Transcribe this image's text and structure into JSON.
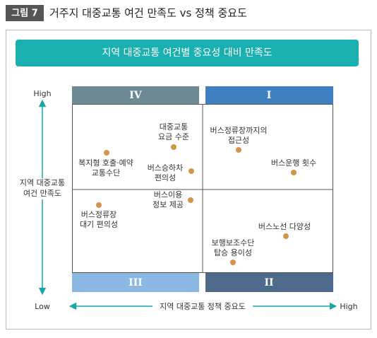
{
  "figure": {
    "label": "그림 7",
    "title": "거주지 대중교통 여건 만족도 vs 정책 중요도"
  },
  "banner": "지역 대중교통 여건별 중요성 대비 만족도",
  "y_axis": {
    "label": [
      "지역 대중교통",
      "여건 만족도"
    ],
    "high": "High",
    "low": "Low"
  },
  "x_axis": {
    "label": "지역 대중교통 정책 중요도",
    "high": "High"
  },
  "quadrants": [
    "IV",
    "I",
    "III",
    "II"
  ],
  "nodes": [
    {
      "label": [
        "복지형 호출·예약",
        "교통수단"
      ]
    },
    {
      "label": [
        "대중교통",
        "요금 수준"
      ]
    },
    {
      "label": [
        "버스승하차",
        "편의성"
      ]
    },
    {
      "label": [
        "버스이용",
        "정보 제공"
      ]
    },
    {
      "label": [
        "버스정류장",
        "대기 편의성"
      ]
    },
    {
      "label": [
        "버스정류장까지의",
        "접근성"
      ]
    },
    {
      "label": [
        "버스운행 횟수"
      ]
    },
    {
      "label": [
        "버스노선 다양성"
      ]
    },
    {
      "label": [
        "보행보조수단",
        "탑승 용이성"
      ]
    }
  ]
}
